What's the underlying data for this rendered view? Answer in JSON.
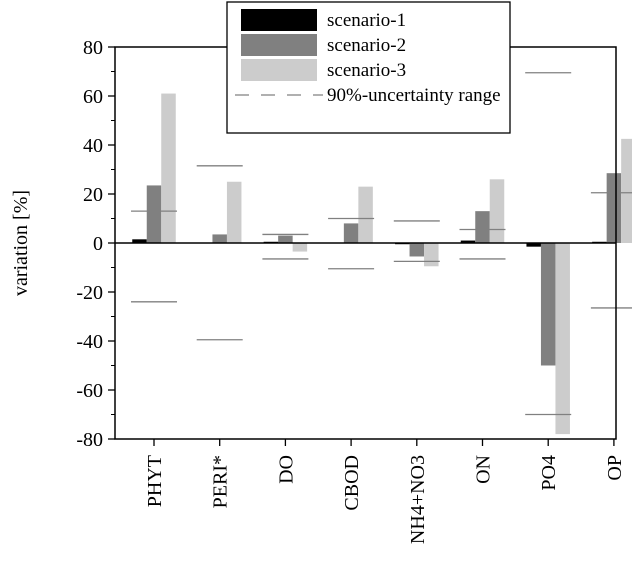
{
  "chart_data": {
    "type": "bar",
    "ylabel": "variation [%]",
    "ylim": [
      -80,
      80
    ],
    "yticks": [
      -80,
      -60,
      -40,
      -20,
      0,
      20,
      40,
      60,
      80
    ],
    "grid": false,
    "legend_position": "top",
    "categories": [
      "PHYT",
      "PERI*",
      "DO",
      "CBOD",
      "NH4+NO3",
      "ON",
      "PO4",
      "OP"
    ],
    "series": [
      {
        "name": "scenario-1",
        "color": "#000000",
        "values": [
          1.5,
          0,
          0.5,
          0,
          -0.5,
          1,
          -1.5,
          0.5
        ]
      },
      {
        "name": "scenario-2",
        "color": "#808080",
        "values": [
          23.5,
          3.5,
          3,
          8,
          -5.5,
          13,
          -50,
          28.5
        ]
      },
      {
        "name": "scenario-3",
        "color": "#cccccc",
        "values": [
          61,
          25,
          -3.5,
          23,
          -9.5,
          26,
          -78,
          42.5
        ]
      }
    ],
    "uncertainty": {
      "name": "90%-uncertainty range",
      "color": "#808080",
      "ranges": [
        [
          -24,
          13
        ],
        [
          -39.5,
          31.5
        ],
        [
          -6.5,
          3.5
        ],
        [
          -10.5,
          10
        ],
        [
          -7.5,
          9
        ],
        [
          -6.5,
          5.5
        ],
        [
          -70,
          69.5
        ],
        [
          -26.5,
          20.5
        ]
      ]
    }
  }
}
